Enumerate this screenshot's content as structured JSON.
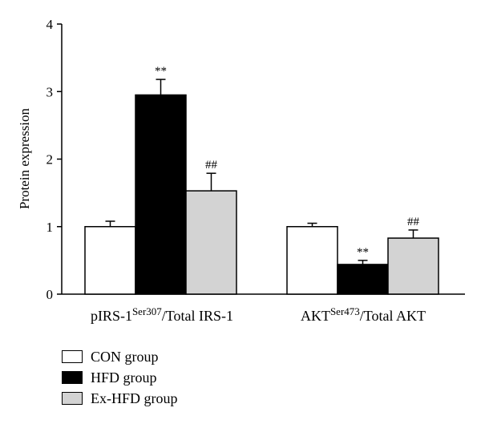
{
  "chart_data": {
    "type": "bar",
    "ylabel": "Protein expression",
    "ylim": [
      0,
      4
    ],
    "yticks": [
      "0",
      "1",
      "2",
      "3",
      "4"
    ],
    "groups": [
      {
        "label": "pIRS-1",
        "label_sup": "Ser307",
        "label_suffix": "/Total IRS-1"
      },
      {
        "label": "AKT",
        "label_sup": "Ser473",
        "label_suffix": "/Total AKT"
      }
    ],
    "series": [
      {
        "name": "CON group",
        "color": "#ffffff",
        "values": [
          1.0,
          1.0
        ],
        "errors": [
          0.08,
          0.05
        ],
        "annotations": [
          "",
          ""
        ]
      },
      {
        "name": "HFD group",
        "color": "#000000",
        "values": [
          2.95,
          0.44
        ],
        "errors": [
          0.23,
          0.06
        ],
        "annotations": [
          "**",
          "**"
        ]
      },
      {
        "name": "Ex-HFD group",
        "color": "#d3d3d3",
        "values": [
          1.53,
          0.83
        ],
        "errors": [
          0.26,
          0.12
        ],
        "annotations": [
          "##",
          "##"
        ]
      }
    ]
  }
}
